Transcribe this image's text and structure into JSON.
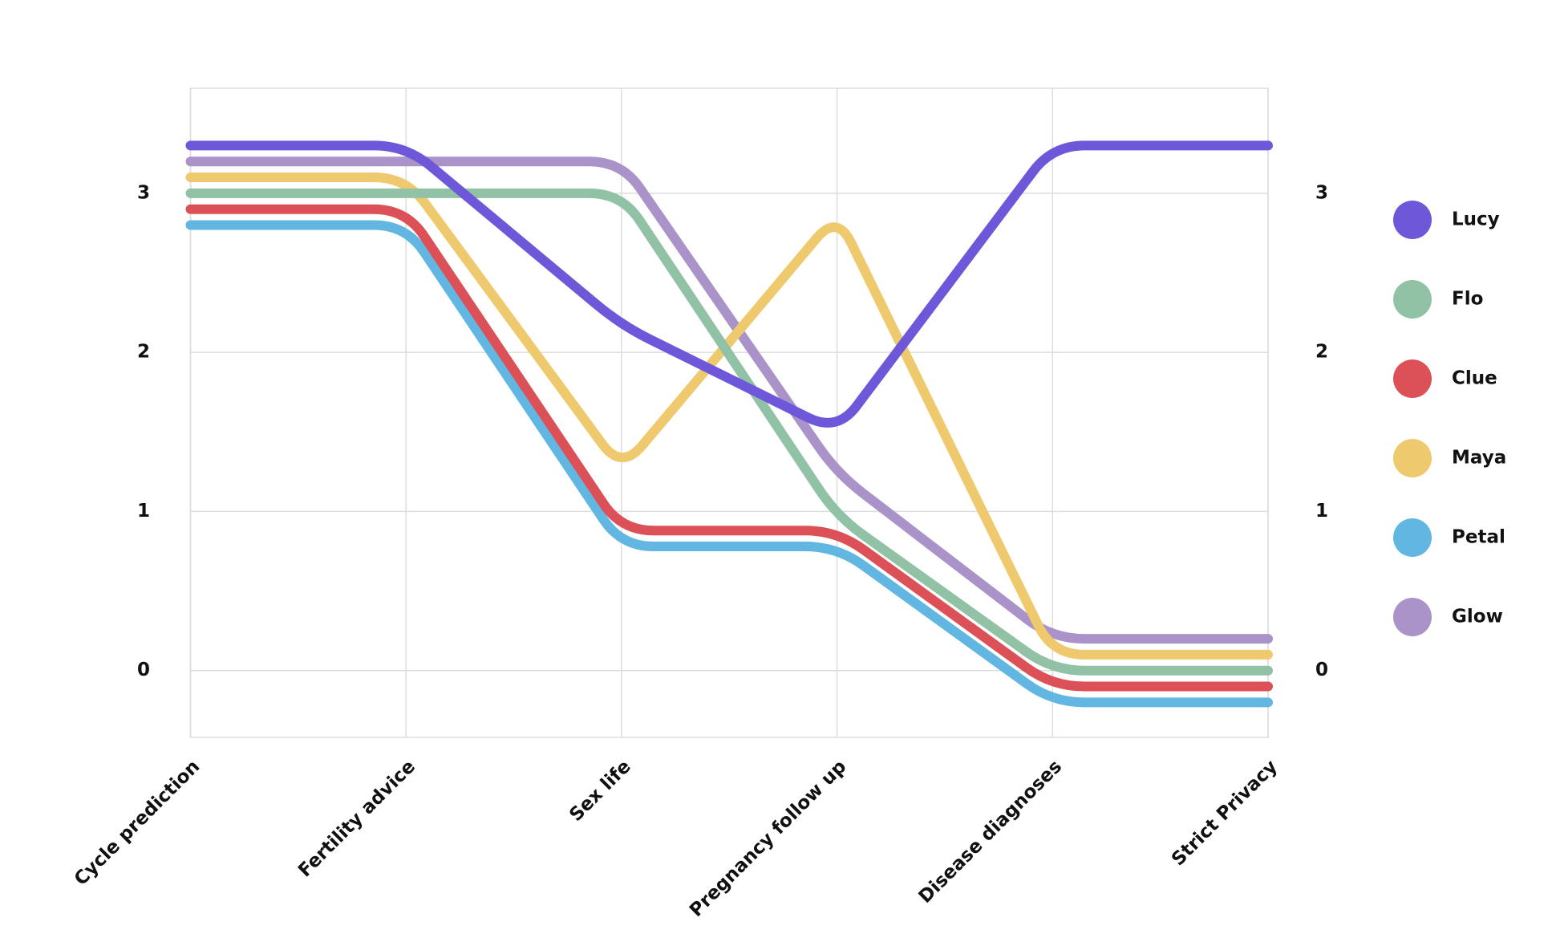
{
  "chart_data": {
    "type": "line",
    "categories": [
      "Cycle prediction",
      "Fertility advice",
      "Sex life",
      "Pregnancy follow up",
      "Disease diagnoses",
      "Strict Privacy"
    ],
    "series": [
      {
        "name": "Lucy",
        "color": "#6e58d9",
        "values": [
          3.3,
          3.3,
          2.17,
          1.5,
          3.3,
          3.3
        ]
      },
      {
        "name": "Flo",
        "color": "#92c2a6",
        "values": [
          3.0,
          3.0,
          3.0,
          0.97,
          0,
          0
        ]
      },
      {
        "name": "Clue",
        "color": "#dc5157",
        "values": [
          2.9,
          2.9,
          0.88,
          0.88,
          -0.1,
          -0.1
        ]
      },
      {
        "name": "Maya",
        "color": "#efc96d",
        "values": [
          3.1,
          3.1,
          1.26,
          2.87,
          0.1,
          0.1
        ]
      },
      {
        "name": "Petal",
        "color": "#62b6e2",
        "values": [
          2.8,
          2.8,
          0.78,
          0.78,
          -0.2,
          -0.2
        ]
      },
      {
        "name": "Glow",
        "color": "#a993c8",
        "values": [
          3.2,
          3.2,
          3.2,
          1.24,
          0.2,
          0.2
        ]
      }
    ],
    "ylim": [
      -0.42,
      3.66
    ],
    "yticks": [
      0,
      1,
      2,
      3
    ],
    "grid": true,
    "legend": "right"
  }
}
